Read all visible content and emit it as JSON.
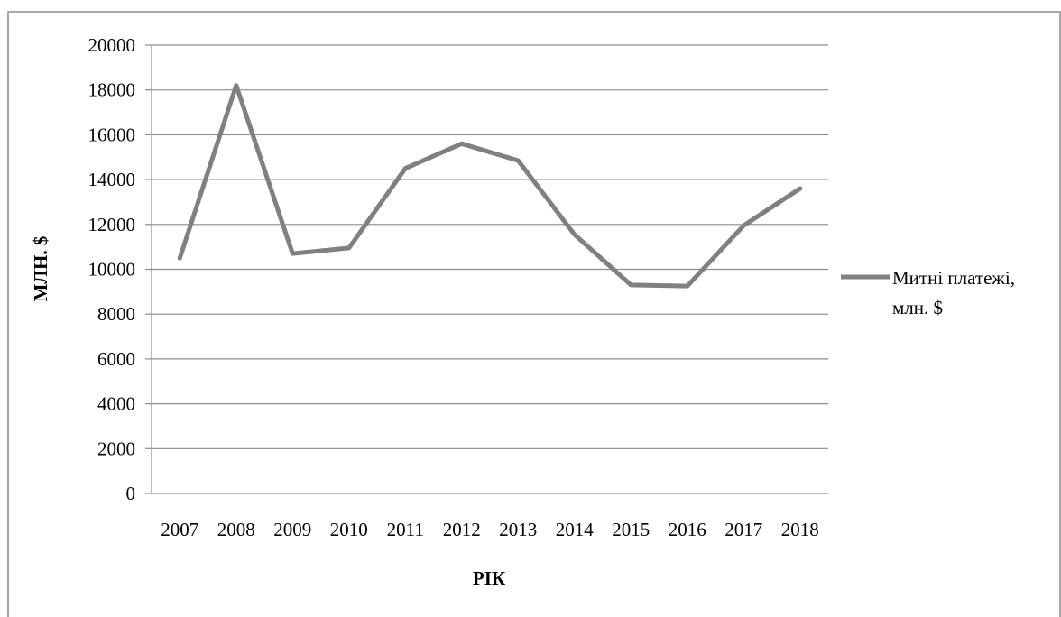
{
  "chart_data": {
    "type": "line",
    "title": "",
    "xlabel": "РІК",
    "ylabel": "МЛН. $",
    "categories": [
      "2007",
      "2008",
      "2009",
      "2010",
      "2011",
      "2012",
      "2013",
      "2014",
      "2015",
      "2016",
      "2017",
      "2018"
    ],
    "series": [
      {
        "name": "Митні платежі, млн. $",
        "values": [
          10500,
          18200,
          10700,
          10950,
          14500,
          15600,
          14850,
          11550,
          9300,
          9250,
          11950,
          13600
        ],
        "color": "#808080"
      }
    ],
    "ylim": [
      0,
      20000
    ],
    "yticks": [
      "0",
      "2000",
      "4000",
      "6000",
      "8000",
      "10000",
      "12000",
      "14000",
      "16000",
      "18000",
      "20000"
    ],
    "grid": true,
    "legend_position": "right",
    "legend_lines": [
      "Митні платежі,",
      "млн. $"
    ]
  }
}
